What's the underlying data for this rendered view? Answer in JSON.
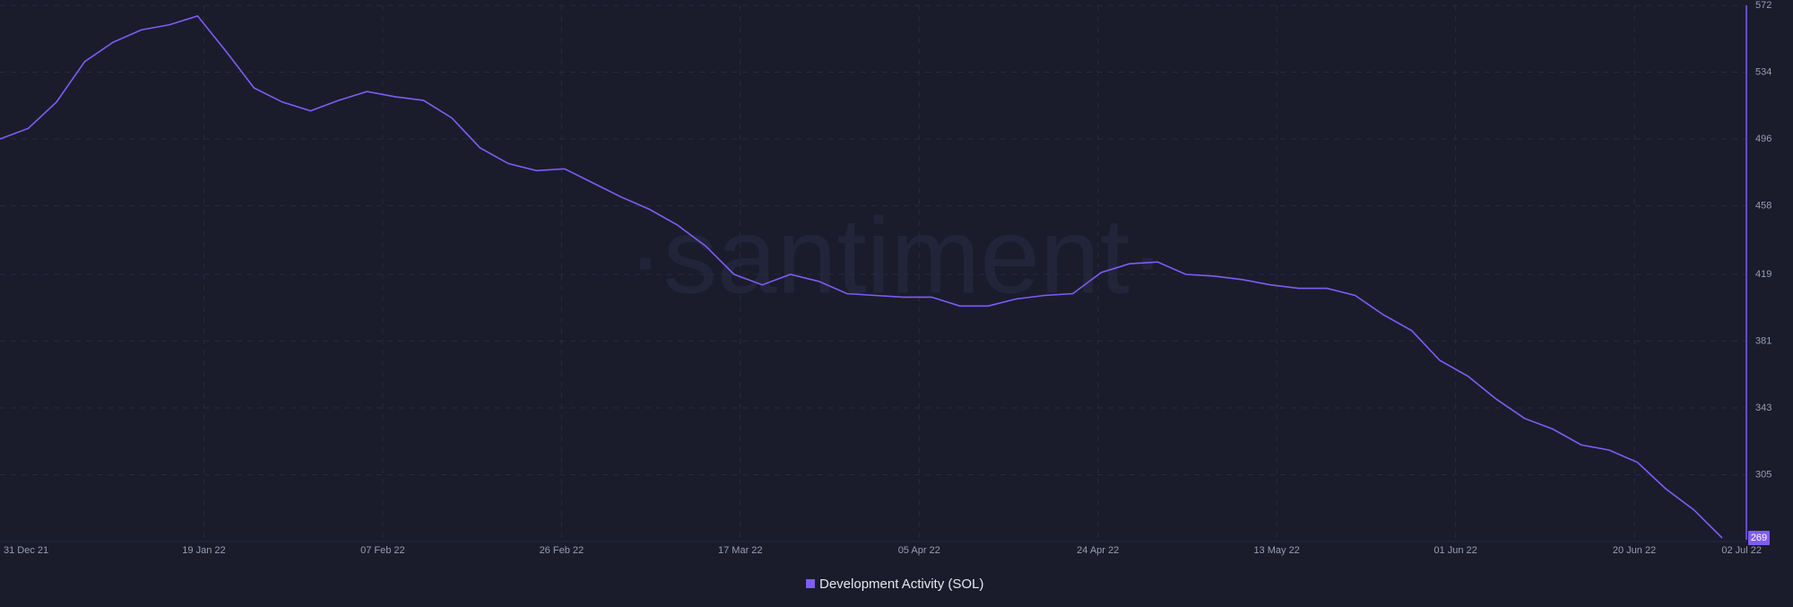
{
  "chart_data": {
    "type": "line",
    "watermark": "·santiment·",
    "x": [
      "31 Dec 21",
      "03 Jan 22",
      "06 Jan 22",
      "09 Jan 22",
      "12 Jan 22",
      "15 Jan 22",
      "18 Jan 22",
      "21 Jan 22",
      "24 Jan 22",
      "27 Jan 22",
      "30 Jan 22",
      "02 Feb 22",
      "05 Feb 22",
      "08 Feb 22",
      "11 Feb 22",
      "14 Feb 22",
      "17 Feb 22",
      "20 Feb 22",
      "23 Feb 22",
      "26 Feb 22",
      "01 Mar 22",
      "04 Mar 22",
      "07 Mar 22",
      "10 Mar 22",
      "13 Mar 22",
      "16 Mar 22",
      "19 Mar 22",
      "22 Mar 22",
      "25 Mar 22",
      "28 Mar 22",
      "31 Mar 22",
      "03 Apr 22",
      "06 Apr 22",
      "09 Apr 22",
      "12 Apr 22",
      "15 Apr 22",
      "18 Apr 22",
      "21 Apr 22",
      "24 Apr 22",
      "27 Apr 22",
      "30 Apr 22",
      "03 May 22",
      "06 May 22",
      "09 May 22",
      "12 May 22",
      "15 May 22",
      "18 May 22",
      "21 May 22",
      "24 May 22",
      "27 May 22",
      "30 May 22",
      "02 Jun 22",
      "05 Jun 22",
      "08 Jun 22",
      "11 Jun 22",
      "14 Jun 22",
      "17 Jun 22",
      "20 Jun 22",
      "23 Jun 22",
      "26 Jun 22",
      "29 Jun 22",
      "02 Jul 22"
    ],
    "series": [
      {
        "name": "Development Activity (SOL)",
        "color": "#7f5cf5",
        "values": [
          496,
          502,
          517,
          540,
          551,
          558,
          561,
          566,
          546,
          525,
          517,
          512,
          518,
          523,
          520,
          518,
          508,
          491,
          482,
          478,
          479,
          471,
          463,
          456,
          447,
          435,
          419,
          413,
          419,
          415,
          408,
          407,
          406,
          406,
          401,
          401,
          405,
          407,
          408,
          420,
          425,
          426,
          419,
          418,
          416,
          413,
          411,
          411,
          407,
          396,
          387,
          370,
          361,
          348,
          337,
          331,
          322,
          319,
          312,
          297,
          285,
          269
        ]
      }
    ],
    "xticks": [
      "31 Dec 21",
      "19 Jan 22",
      "07 Feb 22",
      "26 Feb 22",
      "17 Mar 22",
      "05 Apr 22",
      "24 Apr 22",
      "13 May 22",
      "01 Jun 22",
      "20 Jun 22",
      "02 Jul 22"
    ],
    "ylim": [
      268,
      572
    ],
    "yticks": [
      305,
      343,
      381,
      419,
      458,
      496,
      534,
      572
    ],
    "grid": true
  }
}
